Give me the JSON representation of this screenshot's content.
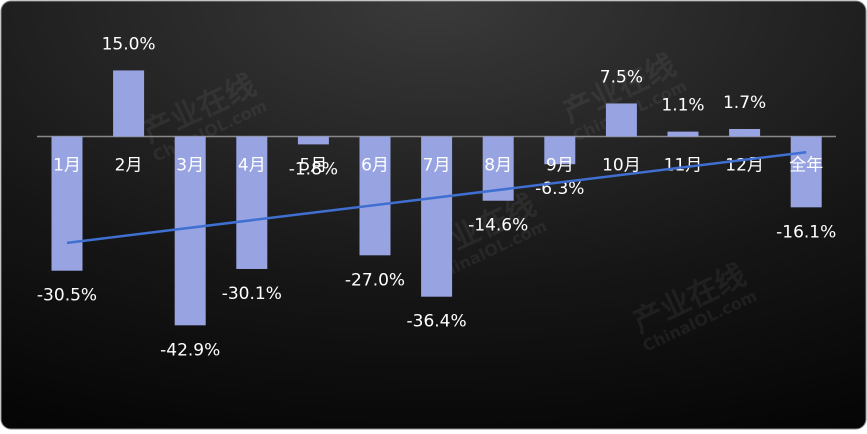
{
  "chart_data": {
    "type": "bar",
    "categories": [
      "1月",
      "2月",
      "3月",
      "4月",
      "5月",
      "6月",
      "7月",
      "8月",
      "9月",
      "10月",
      "11月",
      "12月",
      "全年"
    ],
    "values": [
      -30.5,
      15.0,
      -42.9,
      -30.1,
      -1.8,
      -27.0,
      -36.4,
      -14.6,
      -6.3,
      7.5,
      1.1,
      1.7,
      -16.1
    ],
    "value_labels": [
      "-30.5%",
      "15.0%",
      "-42.9%",
      "-30.1%",
      "-1.8%",
      "-27.0%",
      "-36.4%",
      "-14.6%",
      "-6.3%",
      "7.5%",
      "1.1%",
      "1.7%",
      "-16.1%"
    ],
    "color": "#98a4e2",
    "trendline": true,
    "trend_color": "#3f6fd1",
    "ylim": [
      -66,
      31
    ],
    "watermark": [
      "产业在线",
      "ChinaIOL.com"
    ]
  }
}
